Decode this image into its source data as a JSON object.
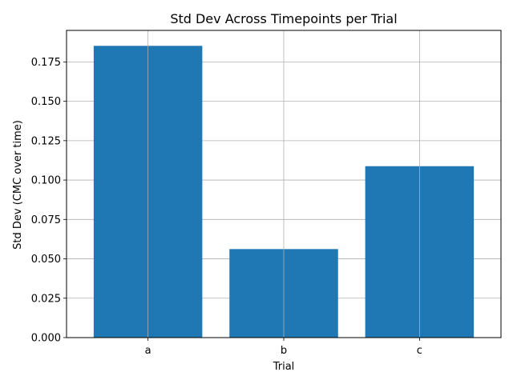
{
  "chart_data": {
    "type": "bar",
    "title": "Std Dev Across Timepoints per Trial",
    "xlabel": "Trial",
    "ylabel": "Std Dev (CMC over time)",
    "categories": [
      "a",
      "b",
      "c"
    ],
    "values": [
      0.1852,
      0.0562,
      0.1088
    ],
    "ylim": [
      0,
      0.195
    ],
    "yticks": [
      "0.000",
      "0.025",
      "0.050",
      "0.075",
      "0.100",
      "0.125",
      "0.150",
      "0.175"
    ],
    "grid": true,
    "bar_color": "#1f77b4"
  }
}
